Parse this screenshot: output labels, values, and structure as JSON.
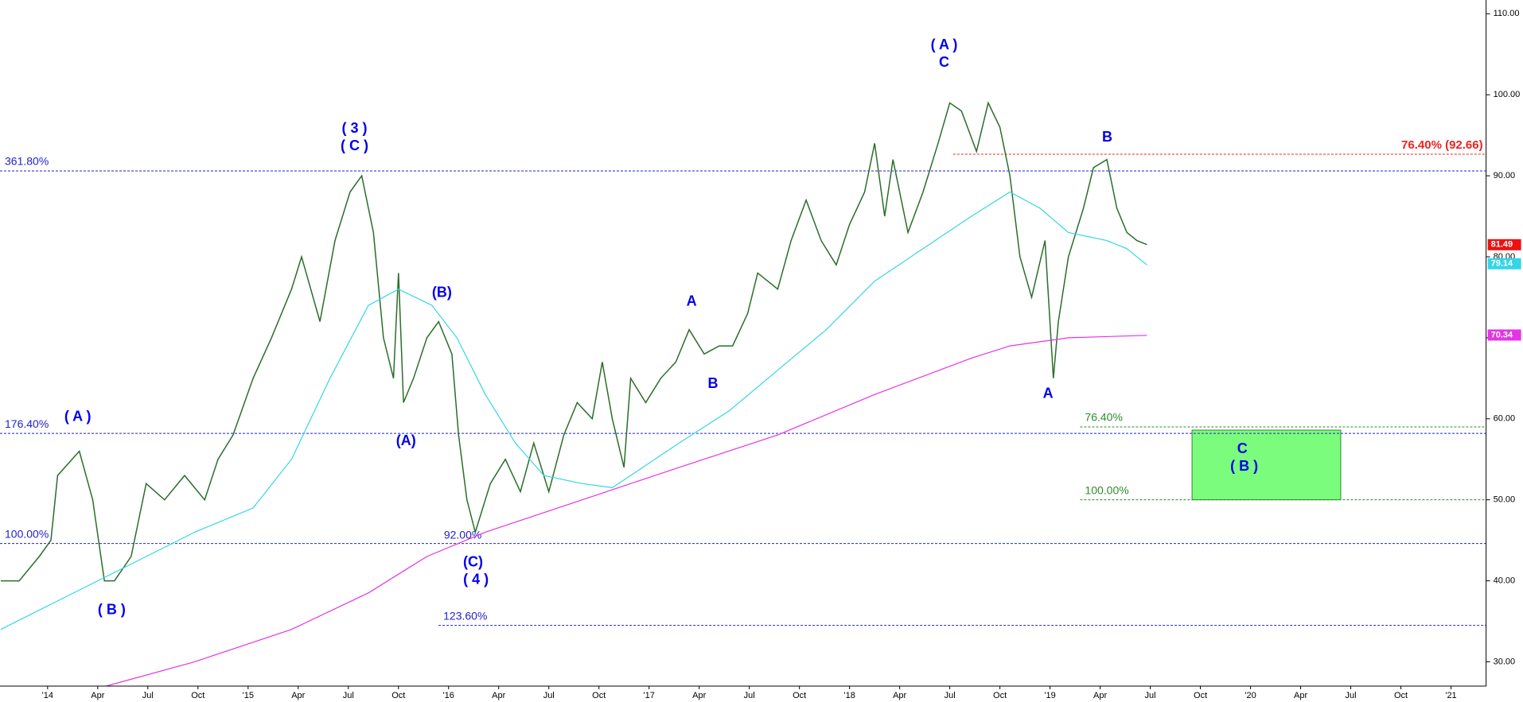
{
  "chart_data": {
    "type": "line",
    "xlim": [
      -2.85,
      86.1
    ],
    "ylim": [
      27.0,
      111.7
    ],
    "xticks": [
      {
        "value": 0,
        "label": "'14"
      },
      {
        "value": 3,
        "label": "Apr"
      },
      {
        "value": 6,
        "label": "Jul"
      },
      {
        "value": 9,
        "label": "Oct"
      },
      {
        "value": 12,
        "label": "'15"
      },
      {
        "value": 15,
        "label": "Apr"
      },
      {
        "value": 18,
        "label": "Jul"
      },
      {
        "value": 21,
        "label": "Oct"
      },
      {
        "value": 24,
        "label": "'16"
      },
      {
        "value": 27,
        "label": "Apr"
      },
      {
        "value": 30,
        "label": "Jul"
      },
      {
        "value": 33,
        "label": "Oct"
      },
      {
        "value": 36,
        "label": "'17"
      },
      {
        "value": 39,
        "label": "Apr"
      },
      {
        "value": 42,
        "label": "Jul"
      },
      {
        "value": 45,
        "label": "Oct"
      },
      {
        "value": 48,
        "label": "'18"
      },
      {
        "value": 51,
        "label": "Apr"
      },
      {
        "value": 54,
        "label": "Jul"
      },
      {
        "value": 57,
        "label": "Oct"
      },
      {
        "value": 60,
        "label": "'19"
      },
      {
        "value": 63,
        "label": "Apr"
      },
      {
        "value": 66,
        "label": "Jul"
      },
      {
        "value": 69,
        "label": "Oct"
      },
      {
        "value": 72,
        "label": "'20"
      },
      {
        "value": 75,
        "label": "Apr"
      },
      {
        "value": 78,
        "label": "Jul"
      },
      {
        "value": 81,
        "label": "Oct"
      },
      {
        "value": 84,
        "label": "'21"
      }
    ],
    "yticks": [
      {
        "value": 30,
        "label": "30.00"
      },
      {
        "value": 40,
        "label": "40.00"
      },
      {
        "value": 50,
        "label": "50.00"
      },
      {
        "value": 60,
        "label": "60.00"
      },
      {
        "value": 70,
        "label": "70.00"
      },
      {
        "value": 80,
        "label": "80.00"
      },
      {
        "value": 90,
        "label": "90.00"
      },
      {
        "value": 100,
        "label": "100.00"
      },
      {
        "value": 110,
        "label": "110.00"
      }
    ],
    "lines": [
      {
        "color": "#2a6e2a",
        "x": [
          -2.8,
          -1.7,
          -0.5,
          0.2,
          0.6,
          1.9,
          2.7,
          3.4,
          4.0,
          5.0,
          5.9,
          7.0,
          8.2,
          9.4,
          10.2,
          11.1,
          12.3,
          13.4,
          14.6,
          15.2,
          16.3,
          17.2,
          18.1,
          18.8,
          19.5,
          20.1,
          20.7,
          21.0,
          21.3,
          21.9,
          22.7,
          23.4,
          24.2,
          24.6,
          25.1,
          25.6,
          26.5,
          27.4,
          28.3,
          29.1,
          30.0,
          30.9,
          31.7,
          32.6,
          33.2,
          33.8,
          34.5,
          34.9,
          35.8,
          36.7,
          37.6,
          38.4,
          39.3,
          40.2,
          41.0,
          41.9,
          42.5,
          43.1,
          43.7,
          44.5,
          45.4,
          46.3,
          47.2,
          48.0,
          48.9,
          49.5,
          50.1,
          50.6,
          51.5,
          52.4,
          53.3,
          54.0,
          54.7,
          55.6,
          56.3,
          57.0,
          57.6,
          58.2,
          58.9,
          59.7,
          60.2,
          60.5,
          61.1,
          62.0,
          62.6,
          63.4,
          64.0,
          64.6,
          65.2,
          65.8
        ],
        "y": [
          40,
          40,
          43,
          45,
          53,
          56,
          50,
          40,
          40,
          43,
          52,
          50,
          53,
          50,
          55,
          58,
          65,
          70,
          76,
          80,
          72,
          82,
          88,
          90,
          83,
          70,
          65,
          78,
          62,
          65,
          70,
          72,
          68,
          58,
          50,
          46,
          52,
          55,
          51,
          57,
          51,
          58,
          62,
          60,
          67,
          60,
          54,
          65,
          62,
          65,
          67,
          71,
          68,
          69,
          69,
          73,
          78,
          77,
          76,
          82,
          87,
          82,
          79,
          84,
          88,
          94,
          85,
          92,
          83,
          88,
          94,
          99,
          98,
          93,
          99,
          96,
          90,
          80,
          75,
          82,
          65,
          72,
          80,
          86,
          91,
          92,
          86,
          83,
          82,
          81.5
        ]
      },
      {
        "color": "#33d6e6",
        "x": [
          -2.8,
          0.1,
          3.0,
          5.9,
          8.8,
          12.3,
          14.6,
          16.9,
          19.2,
          21.0,
          23.0,
          24.5,
          26.2,
          28.0,
          29.7,
          32.0,
          33.8,
          34.9,
          37.8,
          40.8,
          43.7,
          46.6,
          49.5,
          52.4,
          55.3,
          57.6,
          59.4,
          61.1,
          63.4,
          64.6,
          65.8
        ],
        "y": [
          34,
          37,
          40,
          43,
          46,
          49,
          55,
          65,
          74,
          76,
          74,
          70,
          63,
          57,
          53,
          52,
          51.5,
          53,
          57,
          61,
          66,
          71,
          77,
          81,
          85,
          88,
          86,
          83,
          82,
          81,
          79
        ]
      },
      {
        "color": "#e633e6",
        "x": [
          3.5,
          8.8,
          14.6,
          19.2,
          22.7,
          26.2,
          32.0,
          37.8,
          43.7,
          49.5,
          55.3,
          57.6,
          61.1,
          65.8
        ],
        "y": [
          27,
          30,
          34,
          38.5,
          43,
          46,
          50,
          54,
          58,
          63,
          67.5,
          69,
          70,
          70.3
        ]
      }
    ],
    "levels": [
      {
        "label": "361.80%",
        "value": 90.6,
        "start": -2.85,
        "color": "#2222cc"
      },
      {
        "label": "176.40%",
        "value": 58.2,
        "start": -2.85,
        "color": "#2222cc"
      },
      {
        "label": "100.00%",
        "value": 44.6,
        "start": -2.85,
        "color": "#2222cc"
      },
      {
        "label": "123.60%",
        "value": 34.5,
        "start": 23.4,
        "color": "#2222cc"
      },
      {
        "label": "76.40%",
        "value": 59.0,
        "start": 61.8,
        "color": "#2e8b2e"
      },
      {
        "label": "100.00%",
        "value": 50.0,
        "start": 61.8,
        "color": "#2e8b2e"
      },
      {
        "label": "76.40% (92.66)",
        "value": 92.66,
        "start": 54.2,
        "color": "#ee2222"
      }
    ],
    "level_note": "92.00%",
    "zone": {
      "x": [
        68.5,
        77.4
      ],
      "y": [
        50.0,
        58.6
      ],
      "color": "#7cfc7c"
    },
    "annotations": [
      {
        "text": "( A )",
        "color": "#0000ee"
      },
      {
        "text": "( B )",
        "color": "#0000ee"
      },
      {
        "text": "( 3 )",
        "color": "#0000ee"
      },
      {
        "text": "( C )",
        "color": "#0000ee"
      },
      {
        "text": "(A)",
        "color": "#0000ee"
      },
      {
        "text": "(B)",
        "color": "#0000ee"
      },
      {
        "text": "(C)",
        "color": "#0000ee"
      },
      {
        "text": "( 4 )",
        "color": "#0000ee"
      },
      {
        "text": "A",
        "color": "#0000ee"
      },
      {
        "text": "B",
        "color": "#0000ee"
      },
      {
        "text": "( A )",
        "color": "#0000ee"
      },
      {
        "text": "C",
        "color": "#0000ee"
      },
      {
        "text": "A",
        "color": "#0000ee"
      },
      {
        "text": "B",
        "color": "#0000ee"
      },
      {
        "text": "C",
        "color": "#0000ee"
      },
      {
        "text": "( B )",
        "color": "#0000ee"
      }
    ],
    "price_tags": [
      {
        "value": 81.49,
        "color": "#ee1111"
      },
      {
        "value": 79.14,
        "color": "#33d6e6"
      },
      {
        "value": 70.34,
        "color": "#e633e6"
      }
    ]
  }
}
